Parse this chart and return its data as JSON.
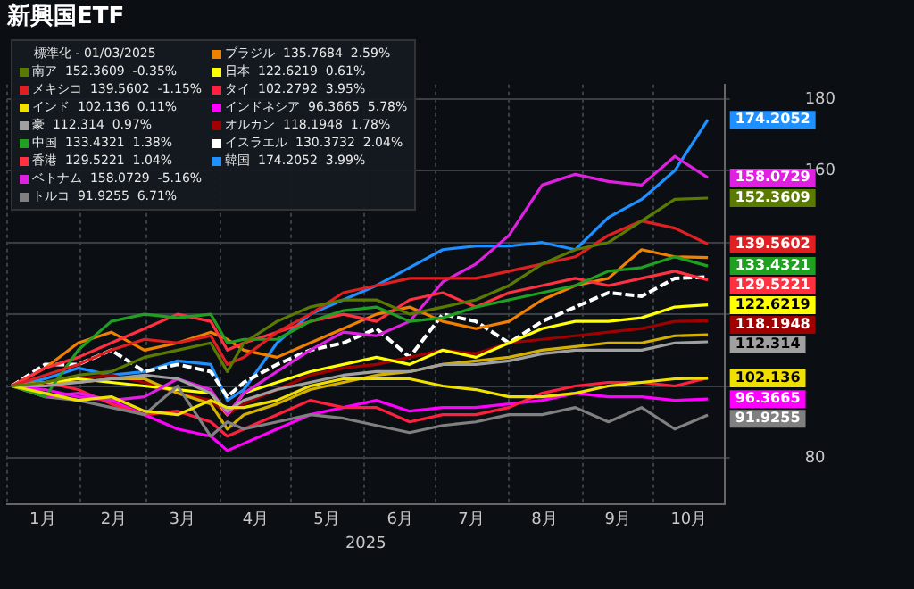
{
  "chart_data": {
    "type": "line",
    "title": "新興国ETF",
    "xlabel": "2025",
    "legend_title": "標準化 - 01/03/2025",
    "legend": "top left",
    "grid": true,
    "marker": "none",
    "data_labels": false,
    "x": [
      "2025-01-03",
      "2025-01-17",
      "2025-01-31",
      "2025-02-14",
      "2025-02-28",
      "2025-03-14",
      "2025-03-28",
      "2025-04-04",
      "2025-04-11",
      "2025-04-25",
      "2025-05-09",
      "2025-05-23",
      "2025-06-06",
      "2025-06-20",
      "2025-07-04",
      "2025-07-18",
      "2025-08-01",
      "2025-08-15",
      "2025-08-29",
      "2025-09-12",
      "2025-09-26",
      "2025-10-10",
      "2025-10-24"
    ],
    "xlim": [
      "2025-01-01",
      "2025-10-31"
    ],
    "xticks": [
      {
        "value": "2025-01-01",
        "label": null
      },
      {
        "value": "2025-01-16",
        "label": "1月"
      },
      {
        "value": "2025-02-01",
        "label": null
      },
      {
        "value": "2025-02-15",
        "label": "2月"
      },
      {
        "value": "2025-03-01",
        "label": null
      },
      {
        "value": "2025-03-16",
        "label": "3月"
      },
      {
        "value": "2025-04-01",
        "label": null
      },
      {
        "value": "2025-04-16",
        "label": "4月"
      },
      {
        "value": "2025-05-01",
        "label": null
      },
      {
        "value": "2025-05-16",
        "label": "5月"
      },
      {
        "value": "2025-06-01",
        "label": null
      },
      {
        "value": "2025-06-16",
        "label": "6月"
      },
      {
        "value": "2025-07-01",
        "label": null
      },
      {
        "value": "2025-07-16",
        "label": "7月"
      },
      {
        "value": "2025-08-01",
        "label": null
      },
      {
        "value": "2025-08-16",
        "label": "8月"
      },
      {
        "value": "2025-09-01",
        "label": null
      },
      {
        "value": "2025-09-16",
        "label": "9月"
      },
      {
        "value": "2025-10-01",
        "label": null
      },
      {
        "value": "2025-10-16",
        "label": "10月"
      }
    ],
    "ylim": [
      67,
      184
    ],
    "yticks": [
      80,
      {
        "value": 100,
        "label": null
      },
      {
        "value": 120,
        "label": null
      },
      {
        "value": 140,
        "label": null
      },
      160,
      180
    ],
    "series": [
      {
        "name": "南ア  152.3609  -0.35%",
        "color": "#5a7a00",
        "values": [
          100,
          101,
          103,
          104,
          108,
          110,
          112,
          104,
          112,
          118,
          122,
          124,
          124,
          120,
          122,
          124,
          128,
          134,
          138,
          140,
          146,
          152,
          152.3609
        ],
        "value_labels": [
          null,
          null,
          null,
          null,
          null,
          null,
          null,
          null,
          null,
          null,
          null,
          null,
          null,
          null,
          null,
          null,
          null,
          null,
          null,
          null,
          null,
          null,
          "152.3609"
        ]
      },
      {
        "name": "メキシコ  139.5602  -1.15%",
        "color": "#e02020",
        "values": [
          100,
          103,
          106,
          110,
          113,
          112,
          114,
          106,
          108,
          115,
          120,
          126,
          128,
          130,
          130,
          130,
          132,
          134,
          136,
          142,
          146,
          144,
          139.5602
        ],
        "value_labels": [
          null,
          null,
          null,
          null,
          null,
          null,
          null,
          null,
          null,
          null,
          null,
          null,
          null,
          null,
          null,
          null,
          null,
          null,
          null,
          null,
          null,
          null,
          "139.5602"
        ]
      },
      {
        "name": "インド  102.136  0.11%",
        "color": "#f0e000",
        "values": [
          100,
          98,
          96,
          97,
          93,
          92,
          96,
          94,
          94,
          96,
          100,
          102,
          102,
          102,
          100,
          99,
          97,
          97,
          98,
          100,
          101,
          102,
          102.136
        ],
        "value_labels": [
          null,
          null,
          null,
          null,
          null,
          null,
          null,
          null,
          null,
          null,
          null,
          null,
          null,
          null,
          null,
          null,
          null,
          null,
          null,
          null,
          null,
          null,
          "102.136"
        ]
      },
      {
        "name": "豪  112.314  0.97%",
        "color": "#a0a0a0",
        "values": [
          100,
          100,
          101,
          102,
          103,
          102,
          98,
          93,
          96,
          99,
          101,
          103,
          104,
          104,
          106,
          106,
          107,
          109,
          110,
          110,
          110,
          112,
          112.314
        ],
        "value_labels": [
          null,
          null,
          null,
          null,
          null,
          null,
          null,
          null,
          null,
          null,
          null,
          null,
          null,
          null,
          null,
          null,
          null,
          null,
          null,
          null,
          null,
          null,
          "112.314"
        ]
      },
      {
        "name": "中国  133.4321  1.38%",
        "color": "#20a020",
        "values": [
          100,
          97,
          110,
          118,
          120,
          119,
          120,
          112,
          113,
          113,
          118,
          121,
          122,
          118,
          119,
          122,
          124,
          126,
          128,
          132,
          133,
          136,
          133.4321
        ],
        "value_labels": [
          null,
          null,
          null,
          null,
          null,
          null,
          null,
          null,
          null,
          null,
          null,
          null,
          null,
          null,
          null,
          null,
          null,
          null,
          null,
          null,
          null,
          null,
          "133.4321"
        ]
      },
      {
        "name": "香港  129.5221  1.04%",
        "color": "#ff3040",
        "values": [
          100,
          105,
          108,
          112,
          116,
          120,
          118,
          110,
          112,
          115,
          118,
          120,
          118,
          124,
          126,
          122,
          126,
          128,
          130,
          128,
          130,
          132,
          129.5221
        ],
        "value_labels": [
          null,
          null,
          null,
          null,
          null,
          null,
          null,
          null,
          null,
          null,
          null,
          null,
          null,
          null,
          null,
          null,
          null,
          null,
          null,
          null,
          null,
          null,
          "129.5221"
        ]
      },
      {
        "name": "ベトナム  158.0729  -5.16%",
        "color": "#e020e0",
        "values": [
          100,
          97,
          98,
          96,
          97,
          102,
          99,
          92,
          98,
          104,
          110,
          115,
          114,
          118,
          129,
          134,
          142,
          156,
          159,
          157,
          156,
          164,
          158.0729
        ],
        "value_labels": [
          null,
          null,
          null,
          null,
          null,
          null,
          null,
          null,
          null,
          null,
          null,
          null,
          null,
          null,
          null,
          null,
          null,
          null,
          null,
          null,
          null,
          null,
          "158.0729"
        ]
      },
      {
        "name": "トルコ  91.9255  6.71%",
        "color": "#808080",
        "values": [
          100,
          97,
          96,
          94,
          92,
          100,
          86,
          90,
          88,
          90,
          92,
          91,
          89,
          87,
          89,
          90,
          92,
          92,
          94,
          90,
          94,
          88,
          91.9255
        ],
        "value_labels": [
          null,
          null,
          null,
          null,
          null,
          null,
          null,
          null,
          null,
          null,
          null,
          null,
          null,
          null,
          null,
          null,
          null,
          null,
          null,
          null,
          null,
          null,
          "91.9255"
        ]
      },
      {
        "name": "ブラジル  135.7684  2.59%",
        "color": "#f08000",
        "values": [
          100,
          105,
          112,
          115,
          110,
          112,
          115,
          113,
          110,
          108,
          112,
          116,
          120,
          122,
          118,
          116,
          118,
          124,
          128,
          130,
          138,
          136,
          135.7684
        ],
        "value_labels": [
          null,
          null,
          null,
          null,
          null,
          null,
          null,
          null,
          null,
          null,
          null,
          null,
          null,
          null,
          null,
          null,
          null,
          null,
          null,
          null,
          null,
          null,
          null
        ]
      },
      {
        "name": "日本  122.6219  0.61%",
        "color": "#ffff00",
        "values": [
          100,
          101,
          102,
          101,
          100,
          99,
          98,
          92,
          98,
          101,
          104,
          106,
          108,
          106,
          110,
          108,
          112,
          116,
          118,
          118,
          119,
          122,
          122.6219
        ],
        "value_labels": [
          null,
          null,
          null,
          null,
          null,
          null,
          null,
          null,
          null,
          null,
          null,
          null,
          null,
          null,
          null,
          null,
          null,
          null,
          null,
          null,
          null,
          null,
          "122.6219"
        ]
      },
      {
        "color": "#d4b000",
        "values": [
          100,
          101,
          101,
          102,
          102,
          98,
          95,
          88,
          92,
          95,
          99,
          101,
          103,
          104,
          106,
          107,
          108,
          110,
          111,
          112,
          112,
          114,
          114.2907
        ]
      },
      {
        "name": "タイ  102.2792  3.95%",
        "color": "#ff2040",
        "values": [
          100,
          101,
          99,
          95,
          92,
          93,
          90,
          86,
          88,
          92,
          96,
          94,
          94,
          90,
          92,
          92,
          94,
          98,
          100,
          101,
          101,
          100,
          102.2792
        ]
      },
      {
        "name": "インドネシア  96.3665  5.78%",
        "color": "#ff00ff",
        "values": [
          100,
          99,
          97,
          96,
          92,
          88,
          86,
          82,
          84,
          88,
          92,
          94,
          96,
          93,
          94,
          94,
          95,
          96,
          98,
          97,
          97,
          96,
          96.3665
        ],
        "value_labels": [
          null,
          null,
          null,
          null,
          null,
          null,
          null,
          null,
          null,
          null,
          null,
          null,
          null,
          null,
          null,
          null,
          null,
          null,
          null,
          null,
          null,
          null,
          "96.3665"
        ]
      },
      {
        "name": "オルカン  118.1948  1.78%",
        "color": "#a00000",
        "values": [
          100,
          101,
          102,
          103,
          101,
          98,
          96,
          92,
          95,
          99,
          103,
          105,
          106,
          108,
          110,
          109,
          112,
          113,
          114,
          115,
          116,
          118,
          118.1948
        ],
        "value_labels": [
          null,
          null,
          null,
          null,
          null,
          null,
          null,
          null,
          null,
          null,
          null,
          null,
          null,
          null,
          null,
          null,
          null,
          null,
          null,
          null,
          null,
          null,
          "118.1948"
        ]
      },
      {
        "name": "イスラエル  130.3732  2.04%",
        "color": "#ffffff",
        "line_style": "dashed",
        "values": [
          100,
          106,
          106,
          110,
          104,
          106,
          104,
          97,
          101,
          106,
          110,
          112,
          116,
          108,
          120,
          118,
          112,
          118,
          122,
          126,
          125,
          130,
          130.3732
        ]
      },
      {
        "name": "韓国  174.2052  3.99%",
        "color": "#1e90ff",
        "values": [
          100,
          102,
          105,
          103,
          104,
          107,
          106,
          96,
          99,
          112,
          120,
          124,
          128,
          133,
          138,
          139,
          139,
          140,
          138,
          147,
          152,
          160,
          174.2052
        ],
        "value_labels": [
          null,
          null,
          null,
          null,
          null,
          null,
          null,
          null,
          null,
          null,
          null,
          null,
          null,
          null,
          null,
          null,
          null,
          null,
          null,
          null,
          null,
          null,
          "174.2052"
        ]
      }
    ]
  }
}
